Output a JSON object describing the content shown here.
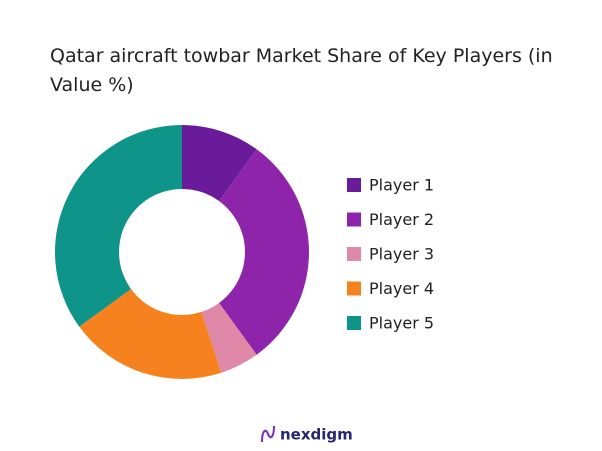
{
  "chart_data": {
    "type": "donut",
    "title": "Qatar aircraft towbar Market Share of Key Players (in Value %)",
    "categories": [
      "Player 1",
      "Player 2",
      "Player 3",
      "Player 4",
      "Player 5"
    ],
    "values": [
      10,
      30,
      5,
      20,
      35
    ],
    "colors": [
      "#6a1b9a",
      "#8e24aa",
      "#e088a8",
      "#f5821f",
      "#0e9488"
    ],
    "legend": "right"
  },
  "brand": "nexdigm"
}
